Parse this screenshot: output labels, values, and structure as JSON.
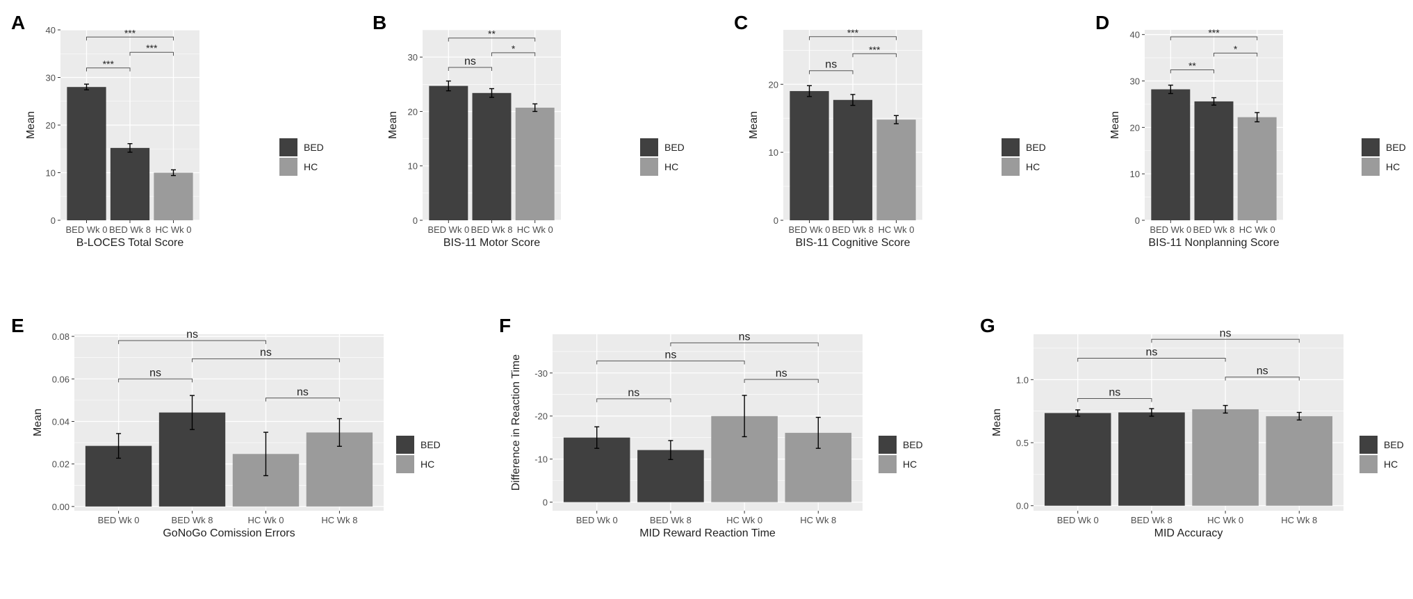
{
  "figure": {
    "legend_labels": [
      "BED",
      "HC"
    ],
    "colors": {
      "panel_bg": "#ebebeb",
      "grid": "#ffffff",
      "BED": "#404040",
      "HC": "#9b9b9b",
      "text": "#222222",
      "tick_text": "#4d4d4d"
    }
  },
  "chart_data": [
    {
      "panel": "A",
      "type": "bar",
      "title": "",
      "xlabel": "B-LOCES Total Score",
      "ylabel": "Mean",
      "categories": [
        "BED Wk 0",
        "BED Wk 8",
        "HC Wk 0"
      ],
      "groups": [
        "BED",
        "BED",
        "HC"
      ],
      "values": [
        28.0,
        15.2,
        10.0
      ],
      "errors": [
        0.6,
        0.9,
        0.6
      ],
      "ylim": [
        0,
        40
      ],
      "yticks": [
        0,
        10,
        20,
        30,
        40
      ],
      "ytick_labels": [
        "0",
        "10",
        "20",
        "30",
        "40"
      ],
      "reverse_y": false,
      "brackets": [
        {
          "from": 0,
          "to": 2,
          "label": "***",
          "y": 38.5
        },
        {
          "from": 0,
          "to": 1,
          "label": "***",
          "y": 32.0
        },
        {
          "from": 1,
          "to": 2,
          "label": "***",
          "y": 35.3
        }
      ]
    },
    {
      "panel": "B",
      "type": "bar",
      "title": "",
      "xlabel": "BIS-11 Motor Score",
      "ylabel": "Mean",
      "categories": [
        "BED Wk 0",
        "BED Wk 8",
        "HC Wk 0"
      ],
      "groups": [
        "BED",
        "BED",
        "HC"
      ],
      "values": [
        24.7,
        23.4,
        20.7
      ],
      "errors": [
        0.9,
        0.8,
        0.7
      ],
      "ylim": [
        0,
        35
      ],
      "yticks": [
        0,
        10,
        20,
        30
      ],
      "ytick_labels": [
        "0",
        "10",
        "20",
        "30"
      ],
      "reverse_y": false,
      "brackets": [
        {
          "from": 0,
          "to": 2,
          "label": "**",
          "y": 33.5
        },
        {
          "from": 0,
          "to": 1,
          "label": "ns",
          "y": 28.1
        },
        {
          "from": 1,
          "to": 2,
          "label": "*",
          "y": 30.8
        }
      ]
    },
    {
      "panel": "C",
      "type": "bar",
      "title": "",
      "xlabel": "BIS-11 Cognitive Score",
      "ylabel": "Mean",
      "categories": [
        "BED Wk 0",
        "BED Wk 8",
        "HC Wk 0"
      ],
      "groups": [
        "BED",
        "BED",
        "HC"
      ],
      "values": [
        19.0,
        17.7,
        14.8
      ],
      "errors": [
        0.8,
        0.8,
        0.6
      ],
      "ylim": [
        0,
        28
      ],
      "yticks": [
        0,
        10,
        20
      ],
      "ytick_labels": [
        "0",
        "10",
        "20"
      ],
      "reverse_y": false,
      "brackets": [
        {
          "from": 0,
          "to": 2,
          "label": "***",
          "y": 27.0
        },
        {
          "from": 0,
          "to": 1,
          "label": "ns",
          "y": 22.0
        },
        {
          "from": 1,
          "to": 2,
          "label": "***",
          "y": 24.5
        }
      ]
    },
    {
      "panel": "D",
      "type": "bar",
      "title": "",
      "xlabel": "BIS-11 Nonplanning Score",
      "ylabel": "Mean",
      "categories": [
        "BED Wk 0",
        "BED Wk 8",
        "HC Wk 0"
      ],
      "groups": [
        "BED",
        "BED",
        "HC"
      ],
      "values": [
        28.2,
        25.6,
        22.2
      ],
      "errors": [
        0.9,
        0.8,
        1.0
      ],
      "ylim": [
        0,
        41
      ],
      "yticks": [
        0,
        10,
        20,
        30,
        40
      ],
      "ytick_labels": [
        "0",
        "10",
        "20",
        "30",
        "40"
      ],
      "reverse_y": false,
      "brackets": [
        {
          "from": 0,
          "to": 2,
          "label": "***",
          "y": 39.5
        },
        {
          "from": 0,
          "to": 1,
          "label": "**",
          "y": 32.4
        },
        {
          "from": 1,
          "to": 2,
          "label": "*",
          "y": 36.0
        }
      ]
    },
    {
      "panel": "E",
      "type": "bar",
      "title": "",
      "xlabel": "GoNoGo Comission Errors",
      "ylabel": "Mean",
      "categories": [
        "BED Wk 0",
        "BED Wk 8",
        "HC Wk 0",
        "HC Wk 8"
      ],
      "groups": [
        "BED",
        "BED",
        "HC",
        "HC"
      ],
      "values": [
        0.0285,
        0.0442,
        0.0247,
        0.0348
      ],
      "errors": [
        0.0058,
        0.008,
        0.0102,
        0.0065
      ],
      "ylim": [
        -0.002,
        0.081
      ],
      "yticks": [
        0,
        0.02,
        0.04,
        0.06,
        0.08
      ],
      "ytick_labels": [
        "0.00",
        "0.02",
        "0.04",
        "0.06",
        "0.08"
      ],
      "reverse_y": false,
      "brackets": [
        {
          "from": 0,
          "to": 2,
          "label": "ns",
          "y": 0.078
        },
        {
          "from": 1,
          "to": 3,
          "label": "ns",
          "y": 0.0695
        },
        {
          "from": 0,
          "to": 1,
          "label": "ns",
          "y": 0.06
        },
        {
          "from": 2,
          "to": 3,
          "label": "ns",
          "y": 0.051
        }
      ]
    },
    {
      "panel": "F",
      "type": "bar",
      "title": "",
      "xlabel": "MID Reward Reaction Time",
      "ylabel": "Difference in Reaction Time",
      "categories": [
        "BED Wk 0",
        "BED Wk 8",
        "HC Wk 0",
        "HC Wk 8"
      ],
      "groups": [
        "BED",
        "BED",
        "HC",
        "HC"
      ],
      "values": [
        -15.0,
        -12.1,
        -20.0,
        -16.1
      ],
      "errors": [
        2.5,
        2.2,
        4.8,
        3.6
      ],
      "ylim": [
        -39,
        2
      ],
      "yticks": [
        0,
        -10,
        -20,
        -30
      ],
      "ytick_labels": [
        "0",
        "-10",
        "-20",
        "-30"
      ],
      "reverse_y": true,
      "brackets": [
        {
          "from": 1,
          "to": 3,
          "label": "ns",
          "y": -37.0
        },
        {
          "from": 0,
          "to": 2,
          "label": "ns",
          "y": -32.8
        },
        {
          "from": 2,
          "to": 3,
          "label": "ns",
          "y": -28.5
        },
        {
          "from": 0,
          "to": 1,
          "label": "ns",
          "y": -24.0
        }
      ]
    },
    {
      "panel": "G",
      "type": "bar",
      "title": "",
      "xlabel": "MID Accuracy",
      "ylabel": "Mean",
      "categories": [
        "BED Wk 0",
        "BED Wk 8",
        "HC Wk 0",
        "HC Wk 8"
      ],
      "groups": [
        "BED",
        "BED",
        "HC",
        "HC"
      ],
      "values": [
        0.735,
        0.74,
        0.765,
        0.71
      ],
      "errors": [
        0.025,
        0.03,
        0.03,
        0.03
      ],
      "ylim": [
        -0.04,
        1.36
      ],
      "yticks": [
        0,
        0.5,
        1.0
      ],
      "ytick_labels": [
        "0.0",
        "0.5",
        "1.0"
      ],
      "reverse_y": false,
      "brackets": [
        {
          "from": 1,
          "to": 3,
          "label": "ns",
          "y": 1.32
        },
        {
          "from": 0,
          "to": 2,
          "label": "ns",
          "y": 1.17
        },
        {
          "from": 2,
          "to": 3,
          "label": "ns",
          "y": 1.02
        },
        {
          "from": 0,
          "to": 1,
          "label": "ns",
          "y": 0.85
        }
      ]
    }
  ]
}
